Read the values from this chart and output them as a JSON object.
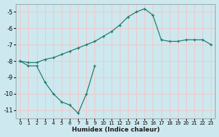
{
  "xlabel": "Humidex (Indice chaleur)",
  "background_color": "#cde8ee",
  "grid_color": "#f0c8c8",
  "line_color": "#1a7a6e",
  "xlim": [
    -0.5,
    23.5
  ],
  "ylim": [
    -11.5,
    -4.5
  ],
  "yticks": [
    -11,
    -10,
    -9,
    -8,
    -7,
    -6,
    -5
  ],
  "xticks": [
    0,
    1,
    2,
    3,
    4,
    5,
    6,
    7,
    8,
    9,
    10,
    11,
    12,
    13,
    14,
    15,
    16,
    17,
    18,
    19,
    20,
    21,
    22,
    23
  ],
  "line1_x": [
    0,
    1,
    2,
    3,
    4,
    5,
    6,
    7,
    8,
    9,
    10,
    11,
    12,
    13,
    14,
    15,
    16,
    17,
    18,
    19,
    20,
    21,
    22,
    23
  ],
  "line1_y": [
    -8.0,
    -8.1,
    -8.1,
    -7.9,
    -7.8,
    -7.6,
    -7.4,
    -7.2,
    -7.0,
    -6.8,
    -6.5,
    -6.2,
    -5.8,
    -5.3,
    -5.0,
    -4.8,
    -5.2,
    -6.7,
    -6.8,
    -6.8,
    -6.7,
    -6.7,
    -6.7,
    -7.0
  ],
  "line2_x": [
    0,
    1,
    2,
    3,
    4,
    5,
    6,
    7,
    8,
    9
  ],
  "line2_y": [
    -8.0,
    -8.3,
    -8.3,
    -9.3,
    -10.0,
    -10.5,
    -10.7,
    -11.2,
    -10.0,
    -8.3
  ]
}
